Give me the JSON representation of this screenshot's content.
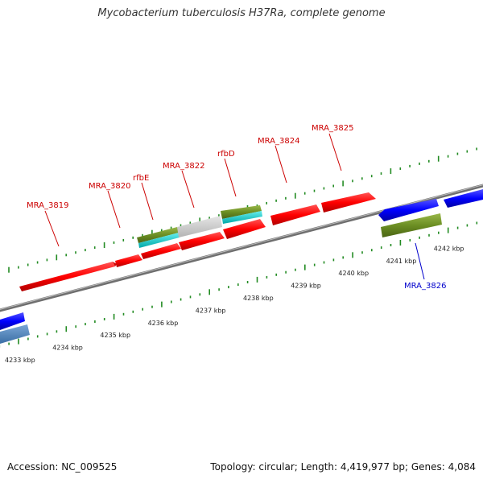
{
  "title": "Mycobacterium tuberculosis H37Ra, complete genome",
  "footer": {
    "accession": "Accession: NC_009525",
    "summary": "Topology: circular; Length: 4,419,977 bp; Genes: 4,084"
  },
  "colors": {
    "cds_forward": "#ff0000",
    "cds_reverse": "#0000ff",
    "gene_bar": "#6b8e23",
    "mrna_bar": "#00cccc",
    "pseudo_bar": "#c8c8c8",
    "label_forward": "#cc0000",
    "label_reverse": "#0000cc",
    "dots": "#228b22",
    "axis": "#888888"
  },
  "tick_labels": [
    "4233 kbp",
    "4234 kbp",
    "4235 kbp",
    "4236 kbp",
    "4237 kbp",
    "4238 kbp",
    "4239 kbp",
    "4240 kbp",
    "4241 kbp",
    "4242 kbp"
  ],
  "gene_labels": [
    "MRA_3819",
    "MRA_3820",
    "rfbE",
    "MRA_3822",
    "rfbD",
    "MRA_3824",
    "MRA_3825",
    "MRA_3826"
  ]
}
